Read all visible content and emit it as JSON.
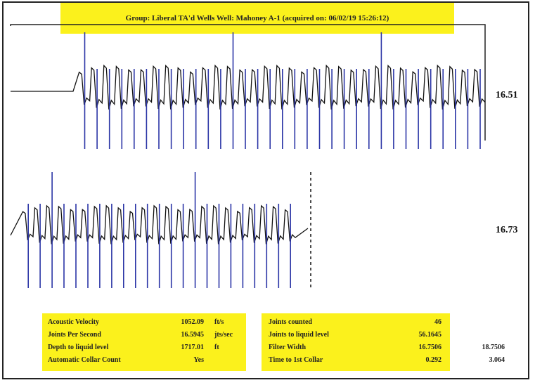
{
  "header": {
    "title": "Group: Liberal TA'd Wells     Well: Mahoney A-1 (acquired on: 06/02/19 15:26:12)"
  },
  "chart_data": {
    "type": "line",
    "title": "Group: Liberal TA'd Wells     Well: Mahoney A-1 (acquired on: 06/02/19 15:26:12)",
    "xlabel": "",
    "ylabel": "",
    "grid": false,
    "rows": [
      {
        "name": "",
        "end_label": "16.51",
        "cycles": 33,
        "collar_every": 1,
        "tall_collars": [
          0,
          12,
          24
        ]
      },
      {
        "name": "",
        "end_label": "16.73",
        "cycles": 23,
        "collar_every": 1,
        "tall_collars": [
          2,
          14
        ]
      }
    ]
  },
  "table": {
    "left": [
      {
        "label": "Acoustic Velocity",
        "value": "1052.09",
        "unit": "ft/s"
      },
      {
        "label": "Joints Per Second",
        "value": "16.5945",
        "unit": "jts/sec"
      },
      {
        "label": "Depth to liquid level",
        "value": "1717.01",
        "unit": "ft"
      },
      {
        "label": "Automatic Collar Count",
        "value": "Yes",
        "unit": ""
      }
    ],
    "right": [
      {
        "label": "Joints counted",
        "value": "46",
        "extra": ""
      },
      {
        "label": "Joints to liquid level",
        "value": "56.1645",
        "extra": ""
      },
      {
        "label": "Filter Width",
        "value": "16.7506",
        "extra": "18.7506"
      },
      {
        "label": "Time to 1st Collar",
        "value": "0.292",
        "extra": "3.064"
      }
    ]
  },
  "colors": {
    "highlight": "#fbf11c",
    "collar": "#2b35a6",
    "trace": "#111111"
  }
}
